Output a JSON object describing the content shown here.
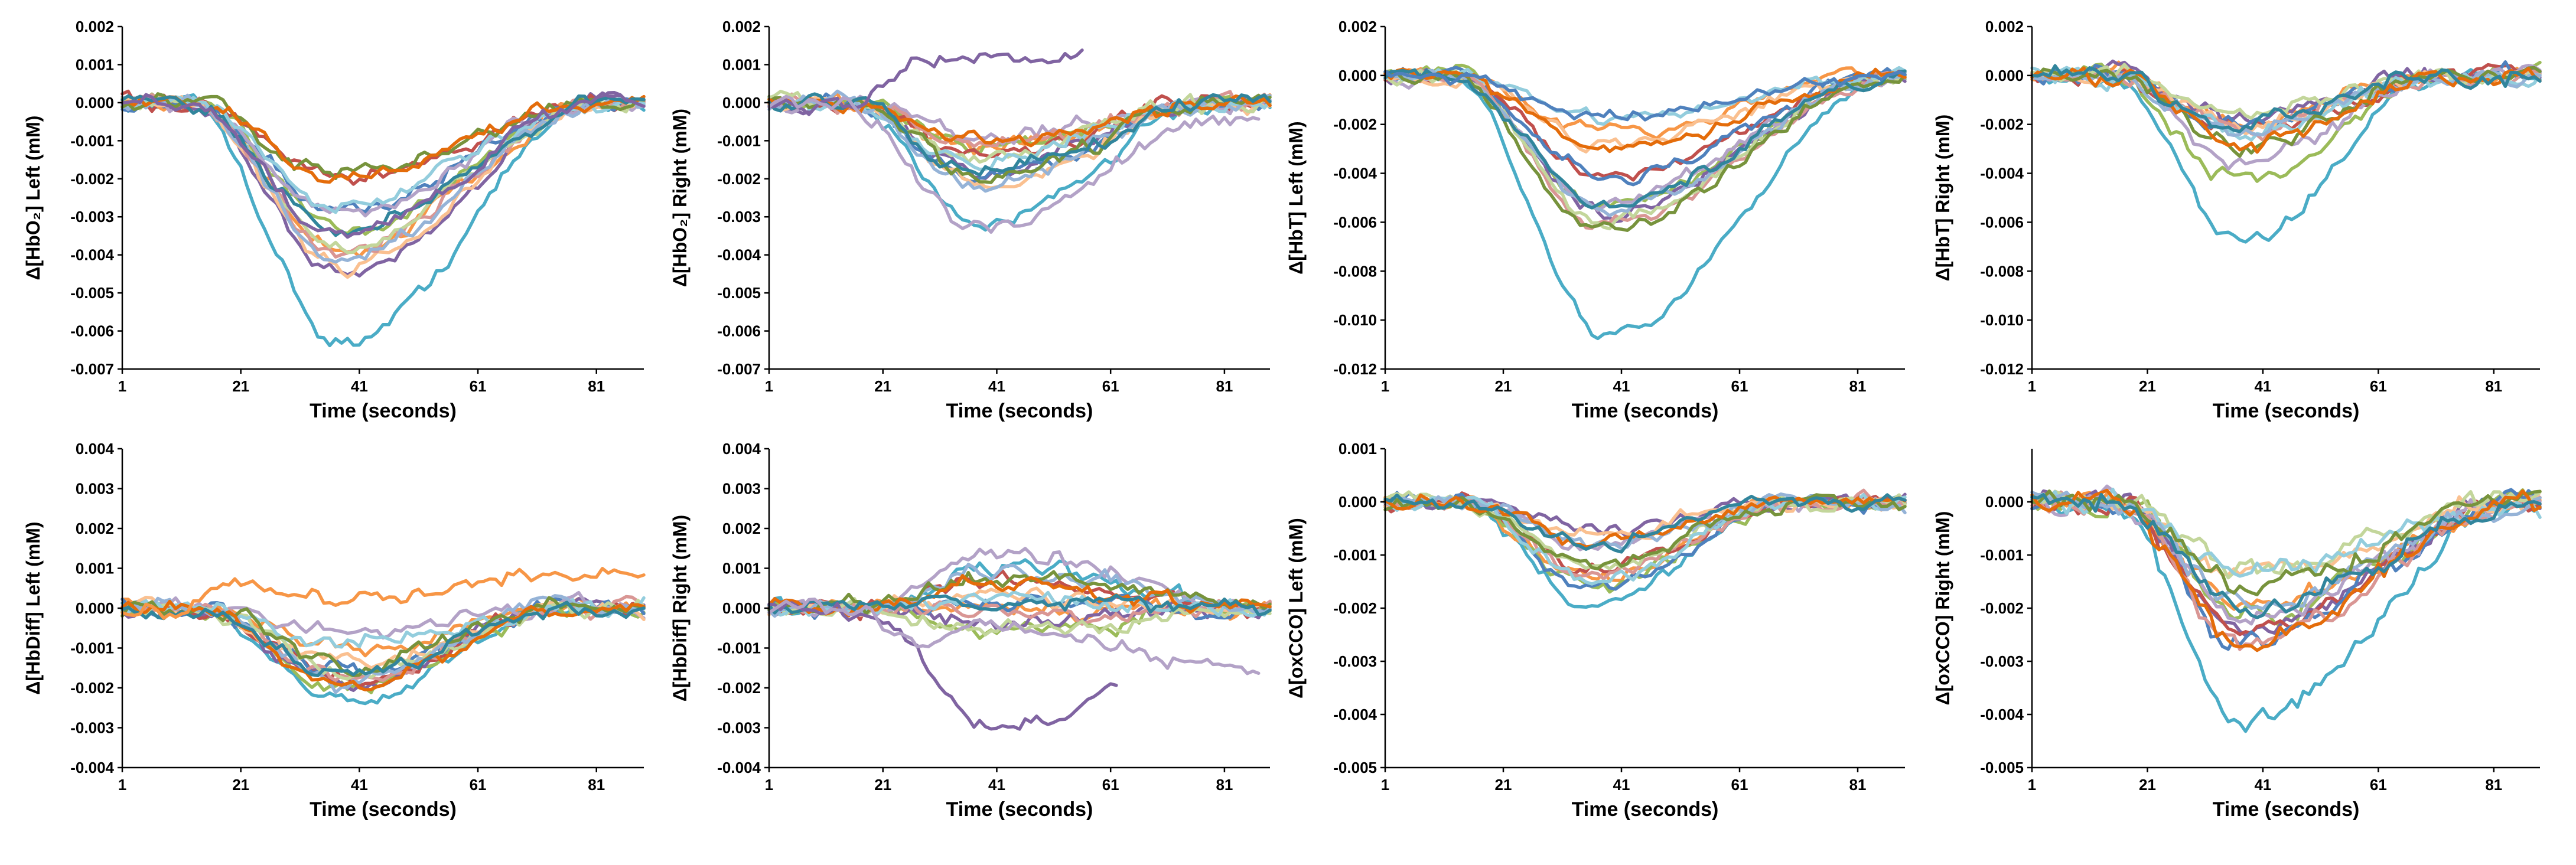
{
  "palette": [
    "#4aacc6",
    "#f79646",
    "#9bbb59",
    "#8064a2",
    "#c0504d",
    "#4f81bd",
    "#b3a2c7",
    "#fac090",
    "#d99694",
    "#c3d69b",
    "#93cddd",
    "#95b3d7",
    "#77933c",
    "#e46c0a",
    "#31859c"
  ],
  "chart_data": [
    {
      "type": "line",
      "title": "",
      "ylabel": "Δ[HbO₂] Left (mM)",
      "xlabel": "Time (seconds)",
      "xlim": [
        1,
        89
      ],
      "ylim": [
        -0.007,
        0.002
      ],
      "xticks": [
        "1",
        "21",
        "41",
        "61",
        "81"
      ],
      "yticks": [
        "0.002",
        "0.001",
        "0.000",
        "-0.001",
        "-0.002",
        "-0.003",
        "-0.004",
        "-0.005",
        "-0.006",
        "-0.007"
      ],
      "n_series": 15,
      "series_profile": {
        "onset": 12,
        "trough_time": 38,
        "recovery_end": 82,
        "trough_main": -0.0063,
        "trough_range": [
          -0.0045,
          -0.0018
        ],
        "noise": 0.0003,
        "x_end": 89
      },
      "special": [
        {
          "color": "#8064a2",
          "x_end": 89,
          "offset": 0.0,
          "scale": 0.55
        }
      ]
    },
    {
      "type": "line",
      "title": "",
      "ylabel": "Δ[HbO₂] Right (mM)",
      "xlabel": "Time (seconds)",
      "xlim": [
        1,
        89
      ],
      "ylim": [
        -0.007,
        0.002
      ],
      "xticks": [
        "1",
        "21",
        "41",
        "61",
        "81"
      ],
      "yticks": [
        "0.002",
        "0.001",
        "0.000",
        "-0.001",
        "-0.002",
        "-0.003",
        "-0.004",
        "-0.005",
        "-0.006",
        "-0.007"
      ],
      "n_series": 15,
      "series_profile": {
        "onset": 15,
        "trough_time": 38,
        "recovery_end": 80,
        "trough_main": -0.0032,
        "trough_range": [
          -0.0025,
          -0.0008
        ],
        "noise": 0.0003,
        "x_end": 89
      },
      "special": [
        {
          "color": "#8064a2",
          "x_end": 56,
          "offset": 0.0012,
          "scale": 0.0
        },
        {
          "color": "#b3a2c7",
          "x_end": 87,
          "offset": -0.0005,
          "scale": 0.9
        }
      ]
    },
    {
      "type": "line",
      "title": "",
      "ylabel": "Δ[HbT] Left (mM)",
      "xlabel": "Time (seconds)",
      "xlim": [
        1,
        89
      ],
      "ylim": [
        -0.012,
        0.002
      ],
      "xticks": [
        "1",
        "21",
        "41",
        "61",
        "81"
      ],
      "yticks": [
        "0.002",
        "0.000",
        "-0.002",
        "-0.004",
        "-0.006",
        "-0.008",
        "-0.010",
        "-0.012"
      ],
      "n_series": 15,
      "series_profile": {
        "onset": 12,
        "trough_time": 38,
        "recovery_end": 88,
        "trough_main": -0.0105,
        "trough_range": [
          -0.0065,
          -0.0018
        ],
        "noise": 0.0004,
        "x_end": 89
      },
      "special": [
        {
          "color": "#4f81bd",
          "x_end": 89,
          "offset": 0.0,
          "scale": 0.16
        }
      ]
    },
    {
      "type": "line",
      "title": "",
      "ylabel": "Δ[HbT] Right (mM)",
      "xlabel": "Time (seconds)",
      "xlim": [
        1,
        89
      ],
      "ylim": [
        -0.012,
        0.002
      ],
      "xticks": [
        "1",
        "21",
        "41",
        "61",
        "81"
      ],
      "yticks": [
        "0.002",
        "0.000",
        "-0.002",
        "-0.004",
        "-0.006",
        "-0.008",
        "-0.010",
        "-0.012"
      ],
      "n_series": 15,
      "series_profile": {
        "onset": 15,
        "trough_time": 37,
        "recovery_end": 72,
        "trough_main": -0.0068,
        "trough_range": [
          -0.0045,
          -0.0015
        ],
        "noise": 0.0005,
        "x_end": 89
      },
      "special": []
    },
    {
      "type": "line",
      "title": "",
      "ylabel": "Δ[HbDiff] Left (mM)",
      "xlabel": "Time (seconds)",
      "xlim": [
        1,
        89
      ],
      "ylim": [
        -0.004,
        0.004
      ],
      "xticks": [
        "1",
        "21",
        "41",
        "61",
        "81"
      ],
      "yticks": [
        "0.004",
        "0.003",
        "0.002",
        "0.001",
        "0.000",
        "-0.001",
        "-0.002",
        "-0.003",
        "-0.004"
      ],
      "n_series": 15,
      "series_profile": {
        "onset": 12,
        "trough_time": 40,
        "recovery_end": 75,
        "trough_main": -0.0024,
        "trough_range": [
          -0.0021,
          -0.0005
        ],
        "noise": 0.0003,
        "x_end": 89
      },
      "special": [
        {
          "color": "#f79646",
          "x_end": 89,
          "offset": 0.0009,
          "scale": 0.3
        }
      ]
    },
    {
      "type": "line",
      "title": "",
      "ylabel": "Δ[HbDiff] Right (mM)",
      "xlabel": "Time (seconds)",
      "xlim": [
        1,
        89
      ],
      "ylim": [
        -0.004,
        0.004
      ],
      "xticks": [
        "1",
        "21",
        "41",
        "61",
        "81"
      ],
      "yticks": [
        "0.004",
        "0.003",
        "0.002",
        "0.001",
        "0.000",
        "-0.001",
        "-0.002",
        "-0.003",
        "-0.004"
      ],
      "n_series": 15,
      "series_profile": {
        "onset": 18,
        "trough_time": 40,
        "recovery_end": 90,
        "trough_main": 0.0011,
        "trough_range": [
          -0.0006,
          0.0016
        ],
        "noise": 0.0003,
        "x_end": 89
      },
      "special": [
        {
          "color": "#8064a2",
          "x_end": 62,
          "offset": 0.0,
          "scale": -2.8
        },
        {
          "color": "#b3a2c7",
          "x_end": 87,
          "offset": -0.0016,
          "scale": 1.1
        }
      ]
    },
    {
      "type": "line",
      "title": "",
      "ylabel": "Δ[oxCCO] Left (mM)",
      "xlabel": "Time (seconds)",
      "xlim": [
        1,
        89
      ],
      "ylim": [
        -0.005,
        0.001
      ],
      "xticks": [
        "1",
        "21",
        "41",
        "61",
        "81"
      ],
      "yticks": [
        "0.001",
        "0.000",
        "-0.001",
        "-0.002",
        "-0.003",
        "-0.004",
        "-0.005"
      ],
      "n_series": 15,
      "series_profile": {
        "onset": 14,
        "trough_time": 36,
        "recovery_end": 70,
        "trough_main": -0.002,
        "trough_range": [
          -0.0017,
          -0.0005
        ],
        "noise": 0.0002,
        "x_end": 89
      },
      "special": []
    },
    {
      "type": "line",
      "title": "",
      "ylabel": "Δ[oxCCO] Right (mM)",
      "xlabel": "Time (seconds)",
      "xlim": [
        1,
        89
      ],
      "ylim": [
        -0.005,
        0.001
      ],
      "xticks": [
        "1",
        "21",
        "41",
        "61",
        "81"
      ],
      "yticks": [
        "0.000",
        "-0.001",
        "-0.002",
        "-0.003",
        "-0.004",
        "-0.005"
      ],
      "n_series": 15,
      "series_profile": {
        "onset": 15,
        "trough_time": 38,
        "recovery_end": 86,
        "trough_main": -0.0042,
        "trough_range": [
          -0.0027,
          -0.001
        ],
        "noise": 0.0003,
        "x_end": 89
      },
      "special": []
    }
  ]
}
